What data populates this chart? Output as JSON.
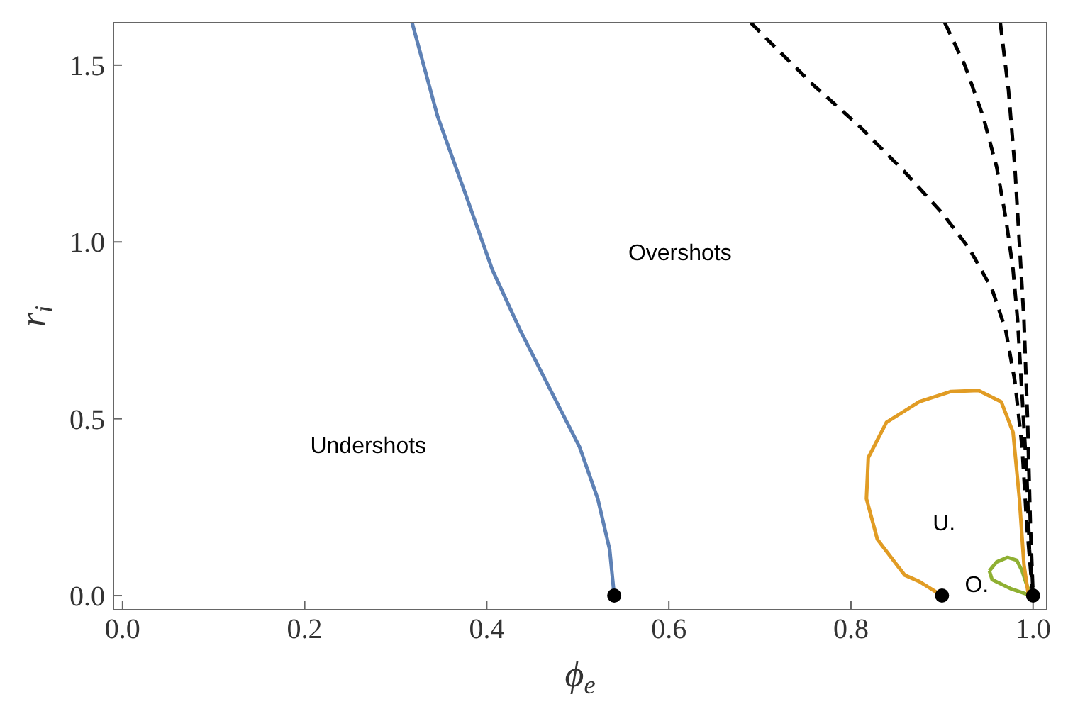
{
  "chart_data": {
    "type": "line",
    "xlabel": "ϕ$_{e}$",
    "ylabel": "r$_{i}$",
    "xlim": [
      -0.01,
      1.015
    ],
    "ylim": [
      -0.04,
      1.62
    ],
    "xticks": [
      {
        "value": 0,
        "label": "0.0"
      },
      {
        "value": 0.2,
        "label": "0.2"
      },
      {
        "value": 0.4,
        "label": "0.4"
      },
      {
        "value": 0.6,
        "label": "0.6"
      },
      {
        "value": 0.8,
        "label": "0.8"
      },
      {
        "value": 1,
        "label": "1.0"
      }
    ],
    "yticks": [
      {
        "value": 0,
        "label": "0.0"
      },
      {
        "value": 0.5,
        "label": "0.5"
      },
      {
        "value": 1,
        "label": "1.0"
      },
      {
        "value": 1.5,
        "label": "1.5"
      }
    ],
    "grid": false,
    "series": [
      {
        "color": "#5e81b5",
        "line_style": "solid",
        "x": [
          0.318,
          0.346,
          0.376,
          0.406,
          0.437,
          0.471,
          0.502,
          0.522,
          0.535,
          0.54
        ],
        "values": [
          1.62,
          1.355,
          1.14,
          0.922,
          0.749,
          0.576,
          0.42,
          0.273,
          0.13,
          0
        ]
      },
      {
        "color": "#e19c24",
        "line_style": "solid",
        "x": [
          0.9,
          0.875,
          0.859,
          0.829,
          0.817,
          0.819,
          0.839,
          0.875,
          0.91,
          0.94,
          0.965,
          0.978,
          0.985,
          0.99,
          0.995
        ],
        "values": [
          0,
          0.04,
          0.058,
          0.159,
          0.274,
          0.39,
          0.49,
          0.548,
          0.577,
          0.58,
          0.548,
          0.462,
          0.274,
          0.087,
          0
        ]
      },
      {
        "color": "#8fb032",
        "line_style": "solid",
        "x": [
          0.952,
          0.955,
          0.975,
          0.998
        ],
        "values": [
          0.07,
          0.045,
          0.02,
          0
        ]
      },
      {
        "color": "#8fb032",
        "line_style": "solid",
        "x": [
          0.952,
          0.96,
          0.972,
          0.982,
          0.988,
          0.993,
          0.998
        ],
        "values": [
          0.07,
          0.095,
          0.108,
          0.1,
          0.07,
          0.03,
          0
        ]
      },
      {
        "color": "#000000",
        "line_style": "dashed",
        "x": [
          0.69,
          0.708,
          0.759,
          0.809,
          0.859,
          0.9,
          0.93,
          0.955,
          0.97,
          0.98,
          0.988,
          0.993,
          0.998,
          1.0
        ],
        "values": [
          1.62,
          1.573,
          1.443,
          1.328,
          1.198,
          1.082,
          0.981,
          0.866,
          0.75,
          0.606,
          0.419,
          0.203,
          0.05,
          0
        ]
      },
      {
        "color": "#000000",
        "line_style": "dashed",
        "x": [
          0.903,
          0.925,
          0.945,
          0.96,
          0.97,
          0.978,
          0.983,
          0.988,
          0.993,
          0.996,
          1.0
        ],
        "values": [
          1.62,
          1.5,
          1.356,
          1.212,
          1.068,
          0.923,
          0.779,
          0.563,
          0.346,
          0.13,
          0
        ]
      },
      {
        "color": "#000000",
        "line_style": "dashed",
        "x": [
          0.964,
          0.973,
          0.98,
          0.985,
          0.99,
          0.994,
          0.997,
          1.0
        ],
        "values": [
          1.62,
          1.429,
          1.212,
          0.996,
          0.779,
          0.49,
          0.203,
          0
        ]
      },
      {
        "type": "scatter",
        "color": "#000000",
        "marker": "circle",
        "x": [
          0.54,
          0.9,
          1.0
        ],
        "values": [
          0,
          0,
          0
        ]
      }
    ],
    "annotations": [
      "Undershots",
      "Overshots",
      "U.",
      "O."
    ]
  }
}
